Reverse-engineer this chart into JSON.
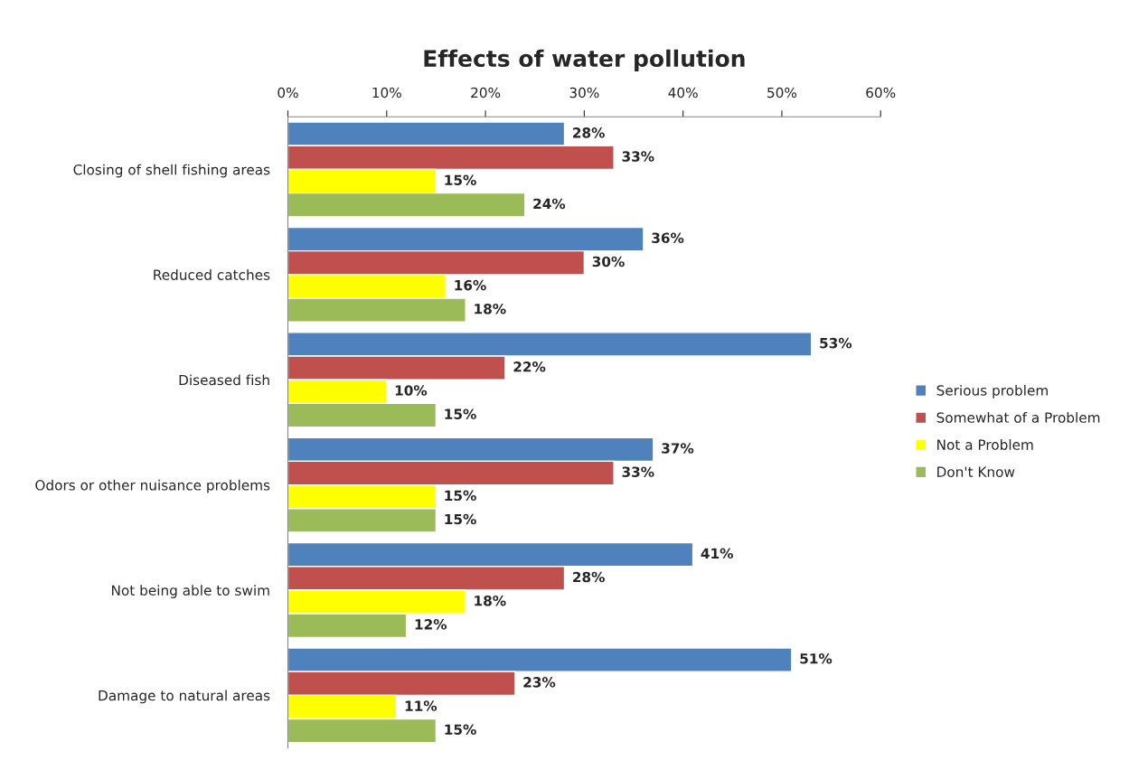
{
  "chart_data": {
    "type": "bar",
    "orientation": "horizontal",
    "title": "Effects of water pollution",
    "categories": [
      "Closing of shell fishing areas",
      "Reduced catches",
      "Diseased fish",
      "Odors or other nuisance problems",
      "Not being able to swim",
      "Damage to natural areas"
    ],
    "series": [
      {
        "name": "Serious problem",
        "color": "#4f81bd",
        "values": [
          28,
          36,
          53,
          37,
          41,
          51
        ],
        "value_labels": [
          "28%",
          "36%",
          "53%",
          "37%",
          "41%",
          "51%"
        ]
      },
      {
        "name": "Somewhat of a Problem",
        "color": "#c0504d",
        "values": [
          33,
          30,
          22,
          33,
          28,
          23
        ],
        "value_labels": [
          "33%",
          "30%",
          "22%",
          "33%",
          "28%",
          "23%"
        ]
      },
      {
        "name": "Not a Problem",
        "color": "#ffff00",
        "values": [
          15,
          16,
          10,
          15,
          18,
          11
        ],
        "value_labels": [
          "15%",
          "16%",
          "10%",
          "15%",
          "18%",
          "11%"
        ]
      },
      {
        "name": "Don't Know",
        "color": "#9bbb59",
        "values": [
          24,
          18,
          15,
          15,
          12,
          15
        ],
        "value_labels": [
          "24%",
          "18%",
          "15%",
          "15%",
          "12%",
          "15%"
        ]
      }
    ],
    "xlim": [
      0,
      60
    ],
    "xticks": [
      {
        "value": 0,
        "label": "0%"
      },
      {
        "value": 10,
        "label": "10%"
      },
      {
        "value": 20,
        "label": "20%"
      },
      {
        "value": 30,
        "label": "30%"
      },
      {
        "value": 40,
        "label": "40%"
      },
      {
        "value": 50,
        "label": "50%"
      },
      {
        "value": 60,
        "label": "60%"
      }
    ],
    "legend": "right",
    "grid": false
  }
}
